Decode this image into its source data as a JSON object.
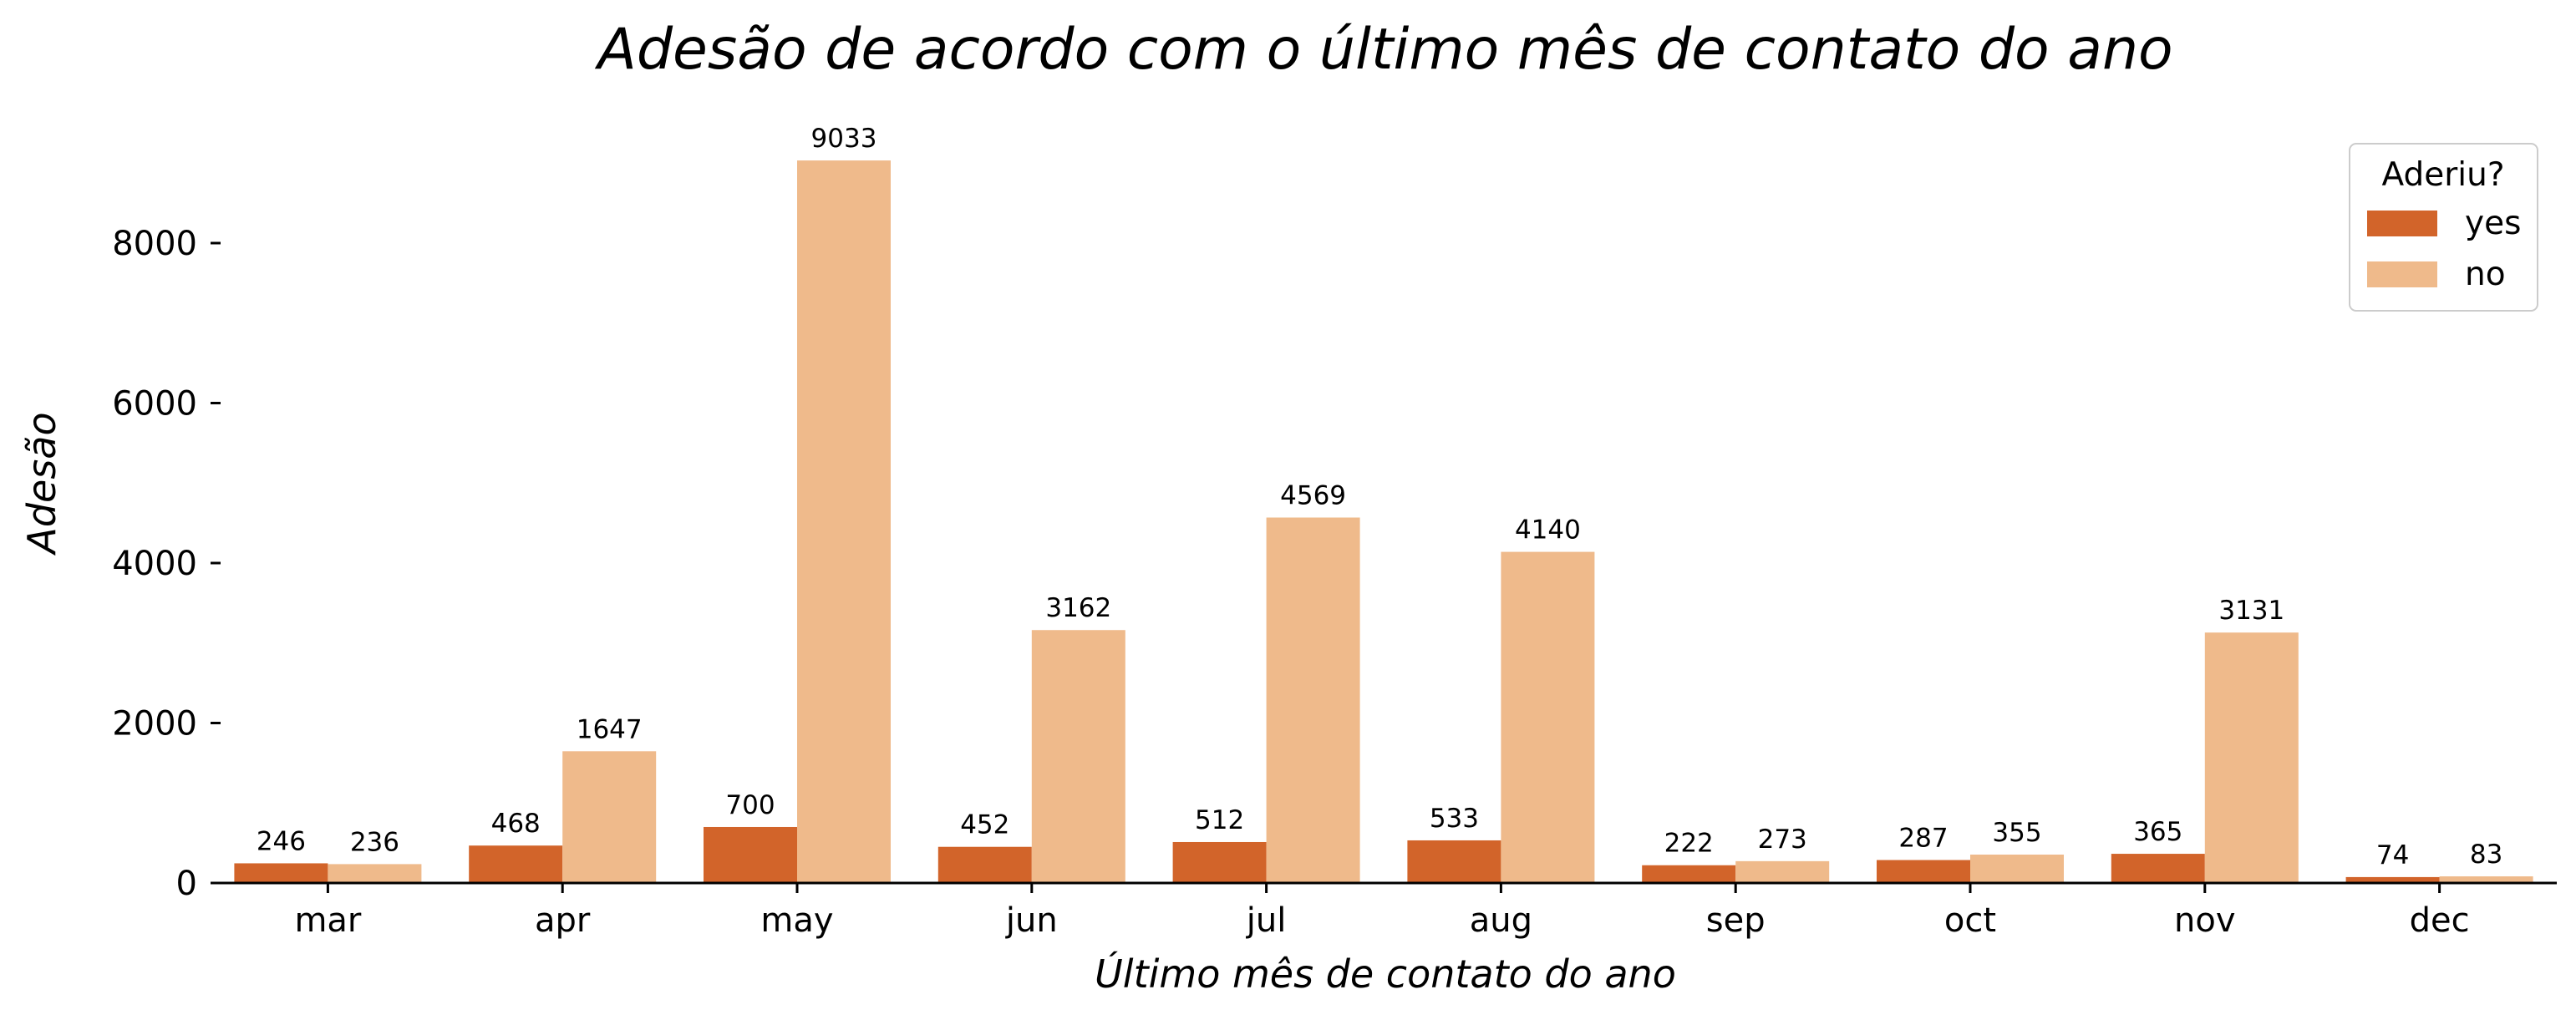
{
  "chart_data": {
    "type": "bar",
    "title": "Adesão de acordo com o último mês de contato do ano",
    "xlabel": "Último mês de contato do ano",
    "ylabel": "Adesão",
    "categories": [
      "mar",
      "apr",
      "may",
      "jun",
      "jul",
      "aug",
      "sep",
      "oct",
      "nov",
      "dec"
    ],
    "series": [
      {
        "name": "yes",
        "color": "#d2642a",
        "values": [
          246,
          468,
          700,
          452,
          512,
          533,
          222,
          287,
          365,
          74
        ]
      },
      {
        "name": "no",
        "color": "#efba8b",
        "values": [
          236,
          1647,
          9033,
          3162,
          4569,
          4140,
          273,
          355,
          3131,
          83
        ]
      }
    ],
    "yticks": [
      0,
      2000,
      4000,
      6000,
      8000
    ],
    "ylim": [
      0,
      9500
    ],
    "legend": {
      "title": "Aderiu?",
      "placement": "top-right"
    },
    "grid": false
  }
}
